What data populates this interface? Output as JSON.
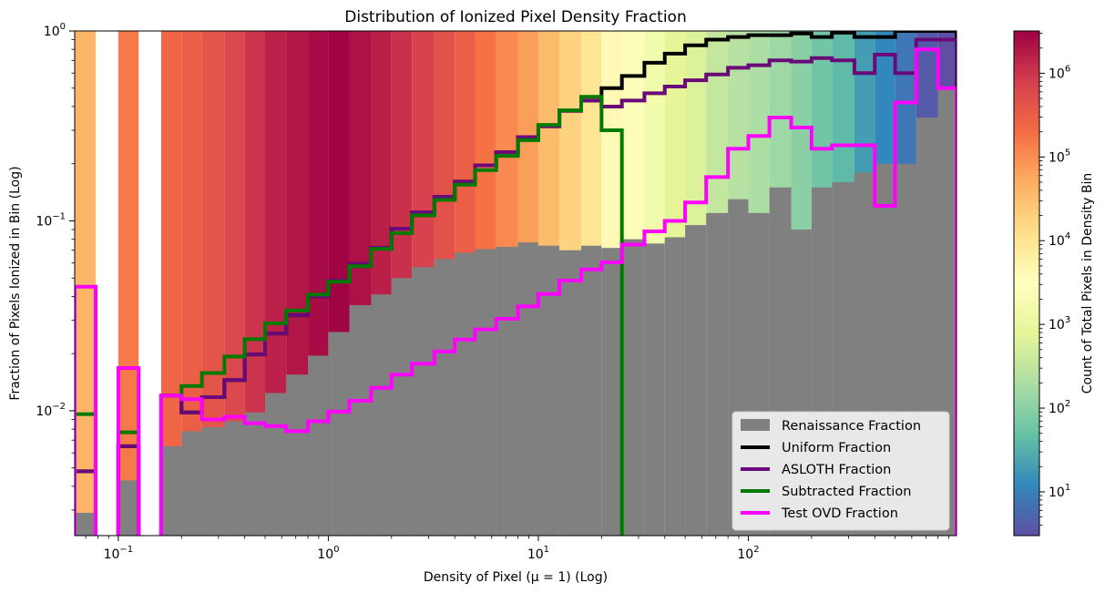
{
  "chart_data": {
    "type": "bar",
    "title": "Distribution of Ionized Pixel Density Fraction",
    "xlabel": "Density of Pixel (μ = 1) (Log)",
    "ylabel": "Fraction of Pixels Ionized in Bin (Log)",
    "colorbar_label": "Count of Total Pixels in Density Bin",
    "xscale": "log",
    "yscale": "log",
    "xlim": [
      0.062,
      980
    ],
    "ylim": [
      0.0022,
      1.0
    ],
    "grid": false,
    "legend_position": "lower-right",
    "x_tick_labels": [
      {
        "value": 0.1,
        "base": "10",
        "exp": "−1"
      },
      {
        "value": 1,
        "base": "10",
        "exp": "0"
      },
      {
        "value": 10,
        "base": "10",
        "exp": "1"
      },
      {
        "value": 100,
        "base": "10",
        "exp": "2"
      }
    ],
    "y_tick_labels": [
      {
        "value": 1,
        "base": "10",
        "exp": "0"
      },
      {
        "value": 0.1,
        "base": "10",
        "exp": "−1"
      },
      {
        "value": 0.01,
        "base": "10",
        "exp": "−2"
      }
    ],
    "colorbar": {
      "colormap": "Spectral_r",
      "scale": "log",
      "range": [
        3,
        3200000
      ],
      "tick_labels": [
        {
          "value": 10,
          "base": "10",
          "exp": "1"
        },
        {
          "value": 100,
          "base": "10",
          "exp": "2"
        },
        {
          "value": 1000,
          "base": "10",
          "exp": "3"
        },
        {
          "value": 10000,
          "base": "10",
          "exp": "4"
        },
        {
          "value": 100000,
          "base": "10",
          "exp": "5"
        },
        {
          "value": 1000000,
          "base": "10",
          "exp": "6"
        }
      ]
    },
    "bin_edges": [
      0.062,
      0.078,
      0.1,
      0.125,
      0.16,
      0.2,
      0.25,
      0.32,
      0.4,
      0.5,
      0.63,
      0.8,
      1.0,
      1.26,
      1.6,
      2.0,
      2.5,
      3.2,
      4.0,
      5.0,
      6.3,
      8.0,
      10.0,
      12.6,
      16.0,
      20.0,
      25.0,
      32.0,
      40.0,
      50.0,
      63.0,
      80.0,
      100.0,
      126.0,
      160.0,
      200.0,
      250.0,
      320.0,
      400.0,
      500.0,
      630.0,
      800.0,
      980.0
    ],
    "bin_counts": [
      40000,
      0,
      150000,
      0,
      250000,
      300000,
      400000,
      600000,
      1000000,
      1500000,
      2000000,
      2500000,
      3000000,
      2200000,
      1600000,
      1100000,
      700000,
      450000,
      300000,
      180000,
      110000,
      70000,
      35000,
      18000,
      10000,
      4000,
      2500,
      1500,
      800,
      600,
      350,
      250,
      200,
      150,
      100,
      60,
      40,
      20,
      12,
      8,
      4,
      3
    ],
    "series": [
      {
        "name": "Renaissance Fraction",
        "color": "#808080",
        "values": [
          0.0029,
          0,
          0.0043,
          0,
          0.0065,
          0.0078,
          0.0082,
          0.0088,
          0.0098,
          0.0124,
          0.0155,
          0.0195,
          0.026,
          0.036,
          0.041,
          0.05,
          0.057,
          0.063,
          0.068,
          0.071,
          0.073,
          0.077,
          0.074,
          0.07,
          0.074,
          0.072,
          0.08,
          0.076,
          0.082,
          0.095,
          0.11,
          0.13,
          0.11,
          0.15,
          0.09,
          0.15,
          0.16,
          0.18,
          0.2,
          0.2,
          0.35,
          0.5
        ]
      },
      {
        "name": "Uniform Fraction",
        "color": "#000000",
        "values": [
          0.0048,
          0,
          0.0065,
          0,
          0.012,
          0.0098,
          0.0118,
          0.0145,
          0.0198,
          0.0255,
          0.0318,
          0.04,
          0.0485,
          0.0595,
          0.0722,
          0.091,
          0.111,
          0.134,
          0.161,
          0.196,
          0.23,
          0.276,
          0.315,
          0.38,
          0.43,
          0.5,
          0.58,
          0.68,
          0.76,
          0.84,
          0.9,
          0.93,
          0.95,
          0.95,
          0.97,
          0.93,
          0.98,
          0.93,
          0.93,
          1.0,
          1.0,
          1.0
        ]
      },
      {
        "name": "ASLOTH Fraction",
        "color": "#6a0a7a",
        "values": [
          0.0048,
          0,
          0.0065,
          0,
          0.012,
          0.0098,
          0.0118,
          0.0145,
          0.0198,
          0.0255,
          0.0318,
          0.04,
          0.0485,
          0.0595,
          0.0722,
          0.091,
          0.111,
          0.134,
          0.161,
          0.196,
          0.23,
          0.276,
          0.315,
          0.38,
          0.43,
          0.4,
          0.43,
          0.47,
          0.51,
          0.55,
          0.59,
          0.64,
          0.66,
          0.7,
          0.69,
          0.72,
          0.7,
          0.6,
          0.75,
          0.6,
          0.9,
          0.9
        ]
      },
      {
        "name": "Subtracted Fraction",
        "color": "#007a00",
        "values": [
          0.0096,
          0,
          0.0077,
          0,
          0.012,
          0.0135,
          0.0158,
          0.0193,
          0.0238,
          0.0289,
          0.0337,
          0.0409,
          0.0478,
          0.0577,
          0.0712,
          0.0862,
          0.107,
          0.129,
          0.155,
          0.185,
          0.22,
          0.266,
          0.32,
          0.382,
          0.45,
          0.3,
          0
        ]
      },
      {
        "name": "Test OVD Fraction",
        "color": "#ff00ff",
        "values": [
          0.045,
          0,
          0.0168,
          0,
          0.012,
          0.0115,
          0.009,
          0.0093,
          0.0086,
          0.0083,
          0.0078,
          0.0088,
          0.0099,
          0.0113,
          0.0132,
          0.0155,
          0.0177,
          0.0205,
          0.0237,
          0.0268,
          0.0305,
          0.0355,
          0.0412,
          0.0485,
          0.0555,
          0.0605,
          0.075,
          0.088,
          0.1,
          0.125,
          0.17,
          0.24,
          0.28,
          0.35,
          0.31,
          0.24,
          0.25,
          0.25,
          0.12,
          0.42,
          0.8,
          0.5
        ]
      }
    ]
  }
}
